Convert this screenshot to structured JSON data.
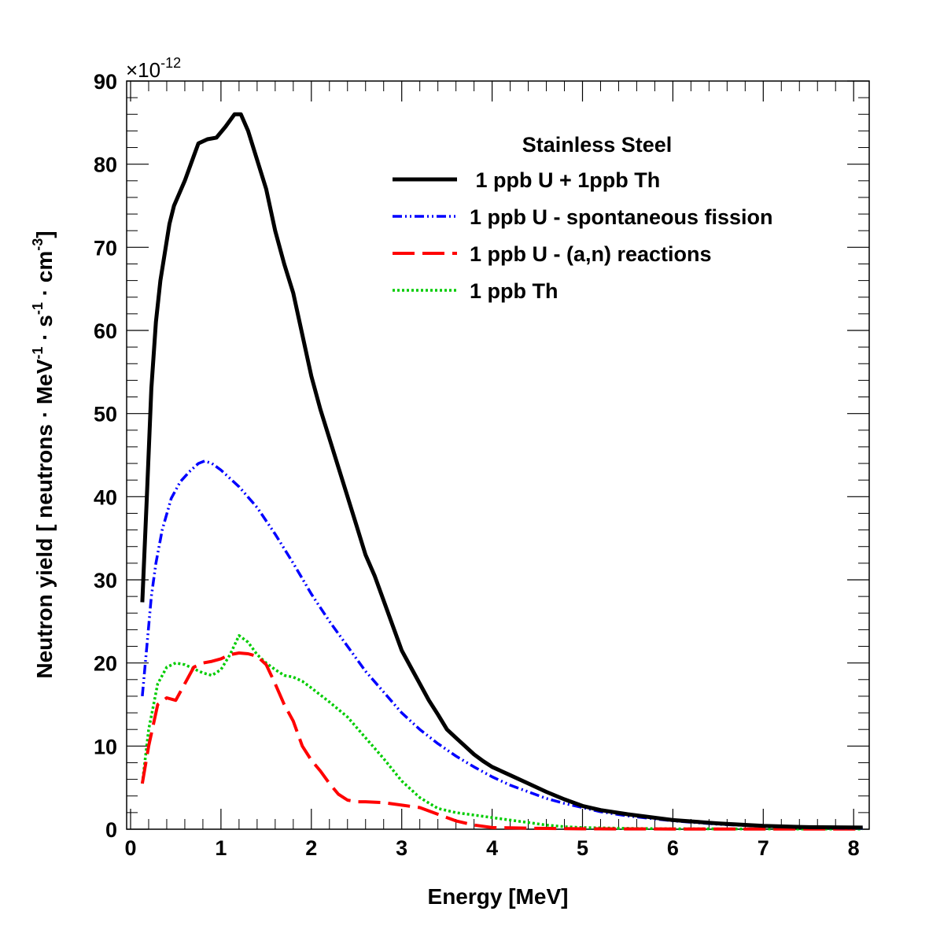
{
  "chart_data": {
    "type": "line",
    "title": "",
    "xlabel": "Energy [MeV]",
    "ylabel": {
      "prefix": "Neutron yield  [ neutrons · MeV",
      "sup1": "-1",
      "mid1": " · s",
      "sup2": "-1",
      "mid2": " · cm",
      "sup3": "-3",
      "suffix": "]"
    },
    "y_multiplier": {
      "base": "×10",
      "exp": "-12"
    },
    "xlim": [
      0,
      8.1
    ],
    "ylim": [
      0,
      90
    ],
    "xticks": [
      0,
      1,
      2,
      3,
      4,
      5,
      6,
      7,
      8
    ],
    "xtick_labels": [
      "0",
      "1",
      "2",
      "3",
      "4",
      "5",
      "6",
      "7",
      "8"
    ],
    "yticks": [
      0,
      10,
      20,
      30,
      40,
      50,
      60,
      70,
      80,
      90
    ],
    "ytick_labels": [
      "0",
      "10",
      "20",
      "30",
      "40",
      "50",
      "60",
      "70",
      "80",
      "90"
    ],
    "legend_title": "Stainless Steel",
    "legend_position": "top-right",
    "series": [
      {
        "name": " 1 ppb U + 1ppb Th",
        "color": "#000000",
        "style": "solid",
        "points": [
          [
            0.13,
            27.3
          ],
          [
            0.18,
            40
          ],
          [
            0.23,
            53
          ],
          [
            0.28,
            61
          ],
          [
            0.33,
            66
          ],
          [
            0.43,
            72.8
          ],
          [
            0.48,
            75
          ],
          [
            0.6,
            78
          ],
          [
            0.7,
            81
          ],
          [
            0.75,
            82.5
          ],
          [
            0.85,
            83
          ],
          [
            0.95,
            83.2
          ],
          [
            1.05,
            84.5
          ],
          [
            1.15,
            86
          ],
          [
            1.22,
            86
          ],
          [
            1.3,
            84
          ],
          [
            1.4,
            80.5
          ],
          [
            1.5,
            77
          ],
          [
            1.6,
            72
          ],
          [
            1.7,
            68
          ],
          [
            1.8,
            64.5
          ],
          [
            1.9,
            59.5
          ],
          [
            2,
            54.5
          ],
          [
            2.1,
            50.5
          ],
          [
            2.2,
            47
          ],
          [
            2.3,
            43.5
          ],
          [
            2.4,
            40
          ],
          [
            2.5,
            36.5
          ],
          [
            2.6,
            33
          ],
          [
            2.7,
            30.5
          ],
          [
            2.8,
            27.5
          ],
          [
            2.9,
            24.5
          ],
          [
            3,
            21.5
          ],
          [
            3.1,
            19.5
          ],
          [
            3.2,
            17.5
          ],
          [
            3.3,
            15.5
          ],
          [
            3.4,
            13.8
          ],
          [
            3.5,
            12
          ],
          [
            3.6,
            11
          ],
          [
            3.7,
            10
          ],
          [
            3.8,
            9
          ],
          [
            3.9,
            8.2
          ],
          [
            4,
            7.5
          ],
          [
            4.2,
            6.5
          ],
          [
            4.4,
            5.5
          ],
          [
            4.6,
            4.5
          ],
          [
            4.8,
            3.6
          ],
          [
            5,
            2.8
          ],
          [
            5.2,
            2.3
          ],
          [
            5.5,
            1.8
          ],
          [
            6,
            1.1
          ],
          [
            6.5,
            0.7
          ],
          [
            7,
            0.4
          ],
          [
            7.5,
            0.25
          ],
          [
            8.1,
            0.2
          ]
        ]
      },
      {
        "name": "1 ppb U - spontaneous fission",
        "color": "#0000ff",
        "style": "dashdot",
        "points": [
          [
            0.13,
            16
          ],
          [
            0.18,
            22
          ],
          [
            0.23,
            28
          ],
          [
            0.28,
            32
          ],
          [
            0.35,
            36
          ],
          [
            0.45,
            39.8
          ],
          [
            0.55,
            41.8
          ],
          [
            0.65,
            43
          ],
          [
            0.75,
            44
          ],
          [
            0.82,
            44.3
          ],
          [
            0.9,
            44
          ],
          [
            1,
            43.2
          ],
          [
            1.2,
            41.2
          ],
          [
            1.4,
            38.7
          ],
          [
            1.6,
            35.5
          ],
          [
            1.8,
            32
          ],
          [
            2,
            28.3
          ],
          [
            2.2,
            25
          ],
          [
            2.4,
            22
          ],
          [
            2.6,
            19
          ],
          [
            2.8,
            16.5
          ],
          [
            3,
            14
          ],
          [
            3.2,
            12
          ],
          [
            3.4,
            10.3
          ],
          [
            3.6,
            8.8
          ],
          [
            3.8,
            7.5
          ],
          [
            4,
            6.3
          ],
          [
            4.2,
            5.3
          ],
          [
            4.4,
            4.5
          ],
          [
            4.6,
            3.7
          ],
          [
            4.8,
            3.1
          ],
          [
            5,
            2.6
          ],
          [
            5.2,
            2.1
          ],
          [
            5.5,
            1.6
          ],
          [
            6,
            1
          ],
          [
            6.5,
            0.6
          ],
          [
            7,
            0.35
          ],
          [
            7.5,
            0.2
          ],
          [
            8.1,
            0.1
          ]
        ]
      },
      {
        "name": "1 ppb U - (a,n) reactions",
        "color": "#ff0000",
        "style": "dashed",
        "points": [
          [
            0.13,
            5.5
          ],
          [
            0.2,
            10
          ],
          [
            0.3,
            15
          ],
          [
            0.4,
            15.8
          ],
          [
            0.5,
            15.5
          ],
          [
            0.6,
            17.5
          ],
          [
            0.7,
            19.5
          ],
          [
            0.8,
            20
          ],
          [
            0.9,
            20.2
          ],
          [
            1,
            20.5
          ],
          [
            1.1,
            21
          ],
          [
            1.2,
            21.2
          ],
          [
            1.3,
            21.1
          ],
          [
            1.4,
            20.8
          ],
          [
            1.5,
            19.8
          ],
          [
            1.6,
            17.5
          ],
          [
            1.7,
            15
          ],
          [
            1.8,
            13
          ],
          [
            1.9,
            10
          ],
          [
            2,
            8.3
          ],
          [
            2.1,
            7
          ],
          [
            2.2,
            5.5
          ],
          [
            2.3,
            4.2
          ],
          [
            2.4,
            3.5
          ],
          [
            2.5,
            3.3
          ],
          [
            2.6,
            3.3
          ],
          [
            2.8,
            3.2
          ],
          [
            3,
            2.9
          ],
          [
            3.2,
            2.6
          ],
          [
            3.4,
            1.8
          ],
          [
            3.6,
            1
          ],
          [
            3.8,
            0.5
          ],
          [
            4,
            0.2
          ],
          [
            4.5,
            0.1
          ],
          [
            5,
            0.05
          ],
          [
            6,
            0.03
          ],
          [
            8.1,
            0.02
          ]
        ]
      },
      {
        "name": "1 ppb Th",
        "color": "#00cc00",
        "style": "dotted",
        "points": [
          [
            0.13,
            5.5
          ],
          [
            0.2,
            12
          ],
          [
            0.3,
            17.5
          ],
          [
            0.4,
            19.5
          ],
          [
            0.5,
            20
          ],
          [
            0.6,
            19.8
          ],
          [
            0.7,
            19.3
          ],
          [
            0.8,
            18.8
          ],
          [
            0.9,
            18.5
          ],
          [
            1,
            19.2
          ],
          [
            1.1,
            21
          ],
          [
            1.2,
            23.3
          ],
          [
            1.3,
            22.5
          ],
          [
            1.4,
            21
          ],
          [
            1.5,
            20
          ],
          [
            1.6,
            19.2
          ],
          [
            1.7,
            18.5
          ],
          [
            1.8,
            18.3
          ],
          [
            1.9,
            17.8
          ],
          [
            2,
            17
          ],
          [
            2.2,
            15.3
          ],
          [
            2.4,
            13.5
          ],
          [
            2.6,
            11
          ],
          [
            2.8,
            8.5
          ],
          [
            3,
            5.8
          ],
          [
            3.2,
            3.8
          ],
          [
            3.4,
            2.5
          ],
          [
            3.6,
            2
          ],
          [
            3.8,
            1.7
          ],
          [
            4,
            1.4
          ],
          [
            4.2,
            1.1
          ],
          [
            4.4,
            0.8
          ],
          [
            4.6,
            0.5
          ],
          [
            4.8,
            0.3
          ],
          [
            5,
            0.2
          ],
          [
            5.5,
            0.1
          ],
          [
            6,
            0.05
          ],
          [
            8.1,
            0.02
          ]
        ]
      }
    ]
  }
}
